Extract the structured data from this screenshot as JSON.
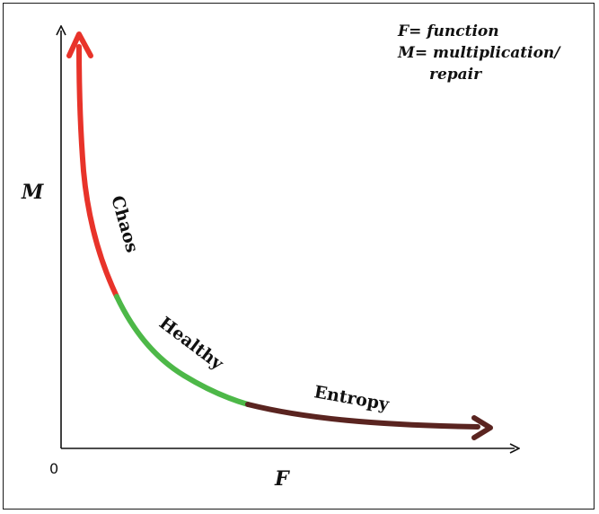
{
  "legend": {
    "line1": "F= function",
    "line2": "M= multiplication/",
    "line3": "repair"
  },
  "axes": {
    "x_label": "F",
    "y_label": "M",
    "origin_label": "0"
  },
  "segments": [
    {
      "name": "Chaos",
      "label": "Chaos",
      "color": "#e8332a"
    },
    {
      "name": "Healthy",
      "label": "Healthy",
      "color": "#4db848"
    },
    {
      "name": "Entropy",
      "label": "Entropy",
      "color": "#5a2420"
    }
  ]
}
